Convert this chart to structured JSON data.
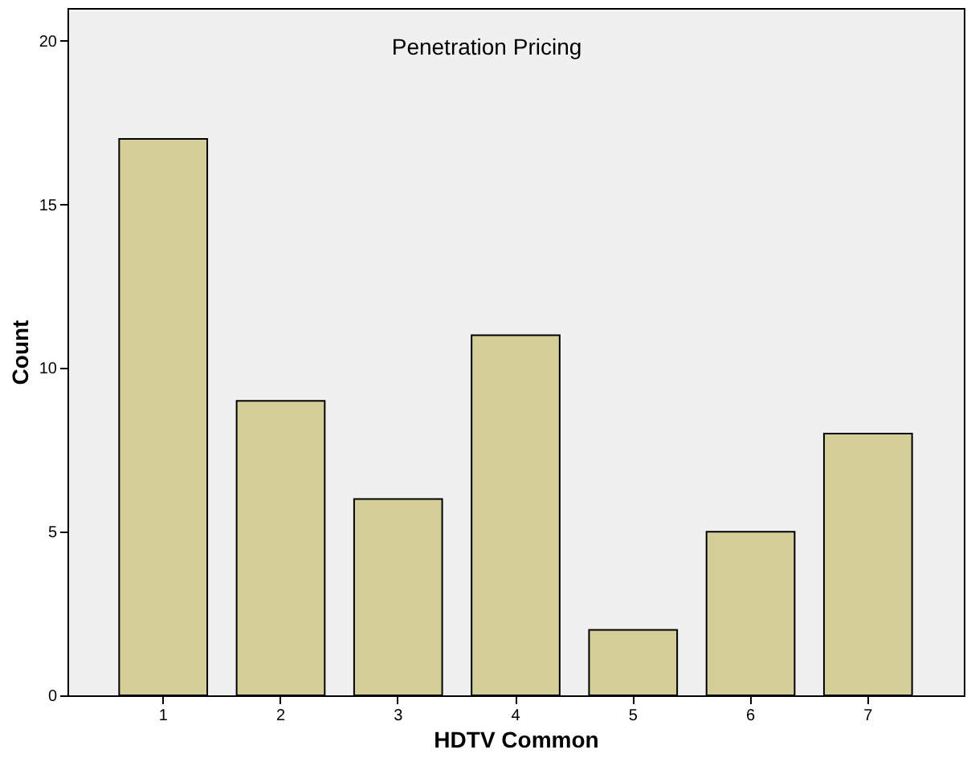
{
  "chart_data": {
    "type": "bar",
    "title": "Penetration Pricing",
    "xlabel": "HDTV Common",
    "ylabel": "Count",
    "categories": [
      "1",
      "2",
      "3",
      "4",
      "5",
      "6",
      "7"
    ],
    "values": [
      17,
      9,
      6,
      11,
      2,
      5,
      8
    ],
    "color": "#d4cf99",
    "ylim": [
      0,
      21
    ],
    "yticks": [
      0,
      5,
      10,
      15,
      20
    ],
    "grid": false
  }
}
